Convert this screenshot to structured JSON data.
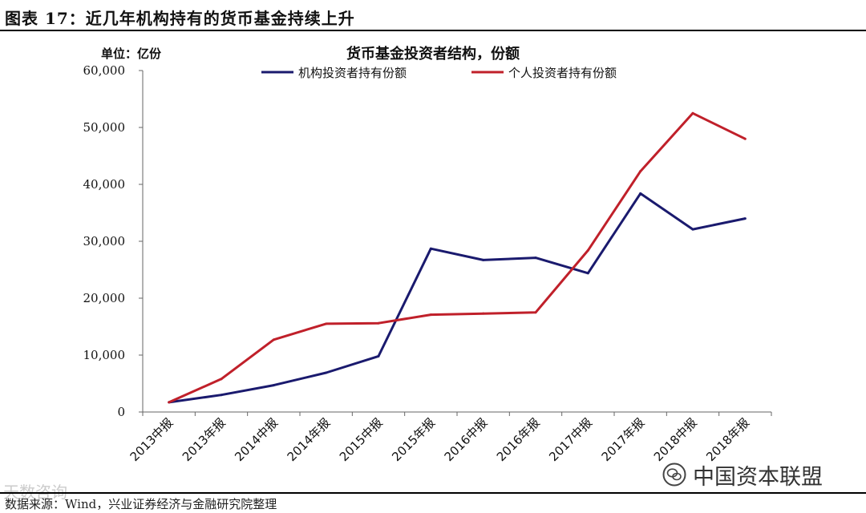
{
  "header": {
    "title": "图表 17：近几年机构持有的货币基金持续上升"
  },
  "footer": {
    "source": "数据来源：Wind，兴业证券经济与金融研究院整理"
  },
  "watermarks": {
    "left": "天数咨询",
    "right": "中国资本联盟",
    "right_icon": "wechat-icon"
  },
  "chart_data": {
    "type": "line",
    "title": "货币基金投资者结构，份额",
    "unit_label": "单位：亿份",
    "categories": [
      "2013中报",
      "2013年报",
      "2014中报",
      "2014年报",
      "2015中报",
      "2015年报",
      "2016中报",
      "2016年报",
      "2017中报",
      "2017年报",
      "2018中报",
      "2018年报"
    ],
    "series": [
      {
        "name": "机构投资者持有份额",
        "color": "#1a1a6e",
        "values": [
          1700,
          3000,
          4700,
          6900,
          9800,
          28700,
          26700,
          27100,
          24400,
          38400,
          32100,
          34000
        ]
      },
      {
        "name": "个人投资者持有份额",
        "color": "#c0202a",
        "values": [
          1700,
          5800,
          12700,
          15500,
          15600,
          17100,
          17300,
          17500,
          28400,
          42300,
          52500,
          48000
        ]
      }
    ],
    "ylim": [
      0,
      60000
    ],
    "yticks": [
      0,
      10000,
      20000,
      30000,
      40000,
      50000,
      60000
    ],
    "ytick_labels": [
      "0",
      "10,000",
      "20,000",
      "30,000",
      "40,000",
      "50,000",
      "60,000"
    ],
    "grid": false,
    "legend_position": "top"
  }
}
